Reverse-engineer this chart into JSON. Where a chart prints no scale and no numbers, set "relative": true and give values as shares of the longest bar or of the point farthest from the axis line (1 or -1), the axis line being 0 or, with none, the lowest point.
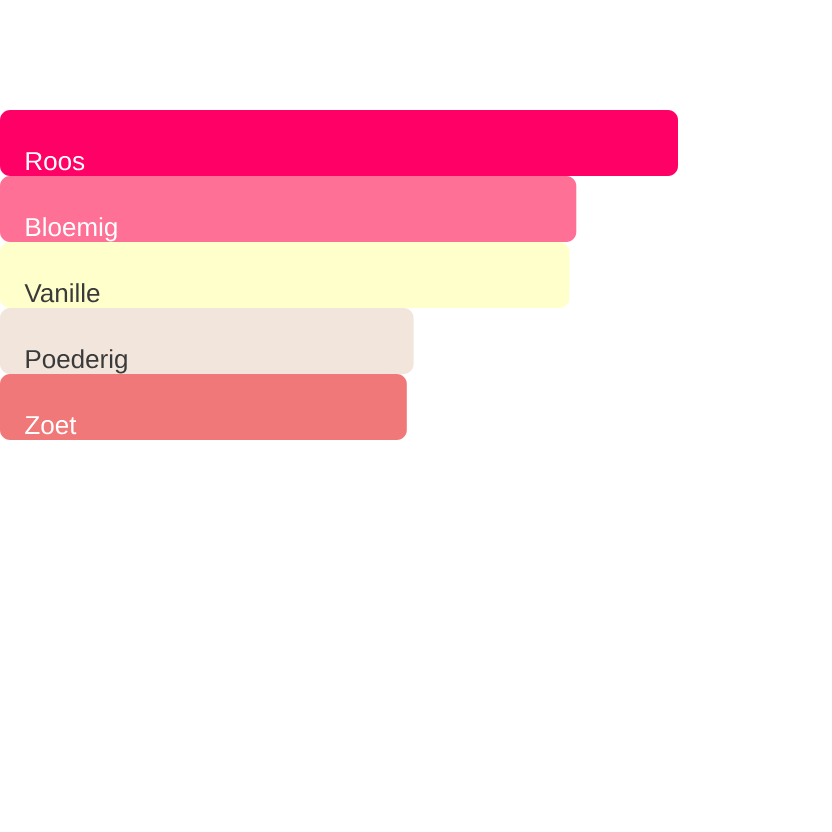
{
  "chart_data": {
    "type": "bar",
    "orientation": "horizontal",
    "relative": true,
    "categories": [
      "Roos",
      "Bloemig",
      "Vanille",
      "Poederig",
      "Zoet"
    ],
    "values": [
      1,
      0.85,
      0.84,
      0.61,
      0.6
    ],
    "colors": [
      "#ff0066",
      "#ff7096",
      "#ffffcc",
      "#f2e6dc",
      "#f07878"
    ]
  }
}
